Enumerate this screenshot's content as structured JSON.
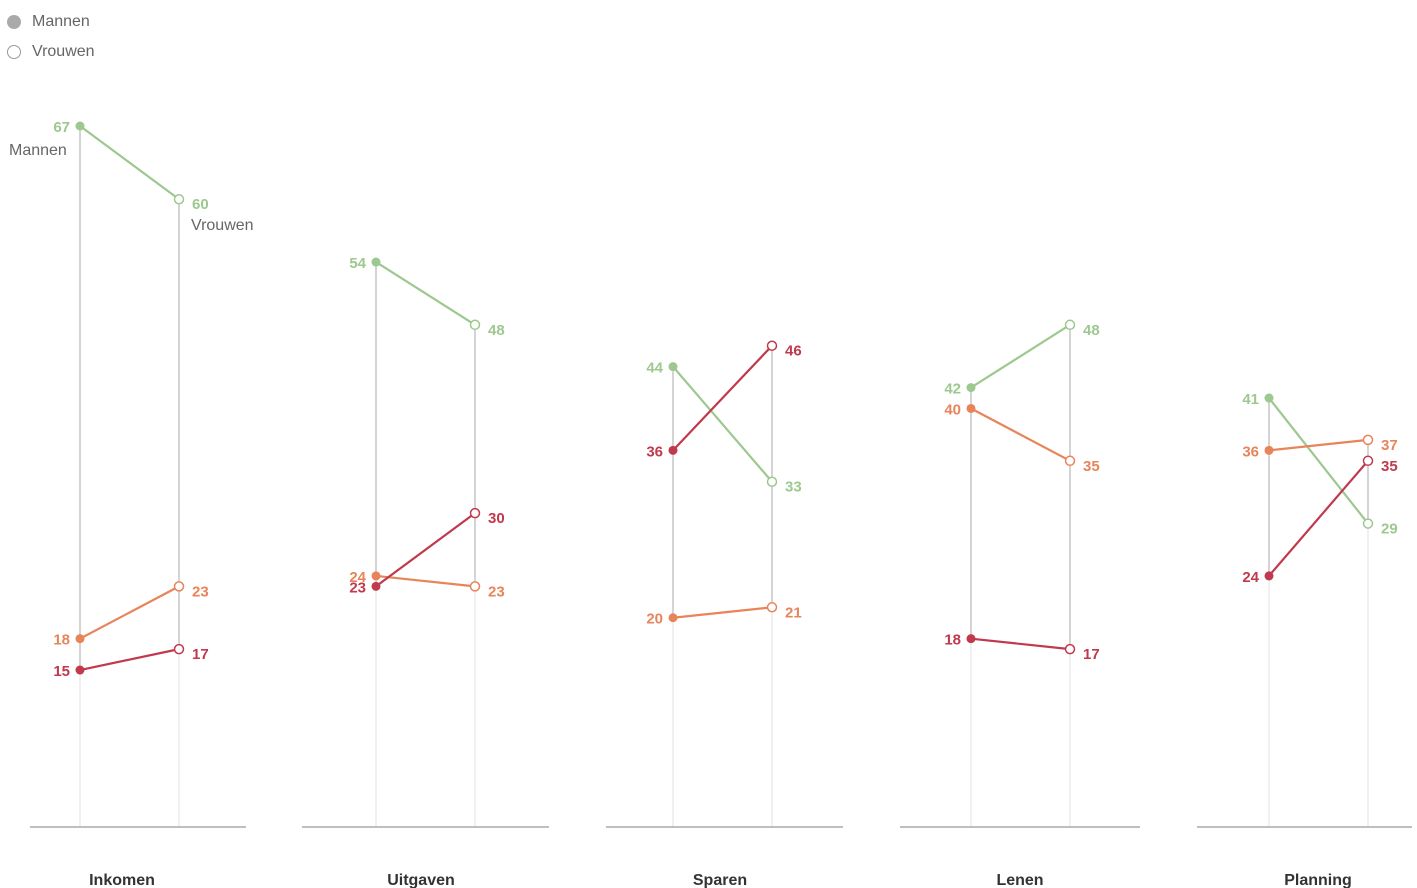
{
  "legend": {
    "men_label": "Mannen",
    "women_label": "Vrouwen"
  },
  "annotations": {
    "men_label": "Mannen",
    "women_label": "Vrouwen"
  },
  "colors": {
    "green": "#9dc88f",
    "orange": "#e8845a",
    "red": "#c0394c",
    "axis": "#999999",
    "text_dark": "#333333",
    "text_grey": "#666666"
  },
  "chart_data": {
    "type": "line",
    "x": [
      "Mannen",
      "Vrouwen"
    ],
    "ylim": [
      0,
      67
    ],
    "grid": false,
    "legend_placement": "top-left",
    "panels": [
      {
        "title": "Inkomen",
        "series": [
          {
            "color": "green",
            "values": [
              67,
              60
            ]
          },
          {
            "color": "orange",
            "values": [
              18,
              23
            ]
          },
          {
            "color": "red",
            "values": [
              15,
              17
            ]
          }
        ]
      },
      {
        "title": "Uitgaven",
        "series": [
          {
            "color": "green",
            "values": [
              54,
              48
            ]
          },
          {
            "color": "orange",
            "values": [
              24,
              23
            ]
          },
          {
            "color": "red",
            "values": [
              23,
              30
            ]
          }
        ]
      },
      {
        "title": "Sparen",
        "series": [
          {
            "color": "green",
            "values": [
              44,
              33
            ]
          },
          {
            "color": "red",
            "values": [
              36,
              46
            ]
          },
          {
            "color": "orange",
            "values": [
              20,
              21
            ]
          }
        ]
      },
      {
        "title": "Lenen",
        "series": [
          {
            "color": "green",
            "values": [
              42,
              48
            ]
          },
          {
            "color": "orange",
            "values": [
              40,
              35
            ]
          },
          {
            "color": "red",
            "values": [
              18,
              17
            ]
          }
        ]
      },
      {
        "title": "Planning",
        "series": [
          {
            "color": "green",
            "values": [
              41,
              29
            ]
          },
          {
            "color": "orange",
            "values": [
              36,
              37
            ]
          },
          {
            "color": "red",
            "values": [
              24,
              35
            ]
          }
        ]
      }
    ]
  }
}
